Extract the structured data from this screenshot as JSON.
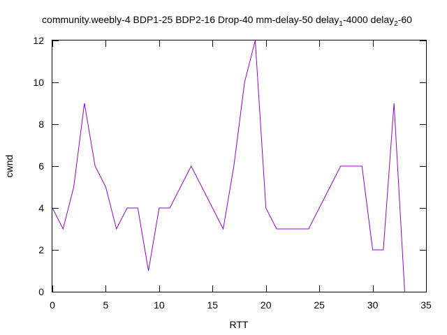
{
  "chart_data": {
    "type": "line",
    "title": {
      "part1": "community.weebly-4 BDP1-25 BDP2-16 Drop-40 mm-delay-50 delay",
      "sub1": "1",
      "part2": "-4000 delay",
      "sub2": "2",
      "part3": "-60"
    },
    "xlabel": "RTT",
    "ylabel": "cwnd",
    "xlim": [
      0,
      35
    ],
    "ylim": [
      0,
      12
    ],
    "xticks": [
      0,
      5,
      10,
      15,
      20,
      25,
      30,
      35
    ],
    "yticks": [
      0,
      2,
      4,
      6,
      8,
      10,
      12
    ],
    "grid": false,
    "legend": "none",
    "series": [
      {
        "color": "#9400d3",
        "x": [
          0,
          1,
          2,
          3,
          4,
          5,
          6,
          7,
          8,
          9,
          10,
          11,
          12,
          13,
          14,
          15,
          16,
          17,
          18,
          19,
          20,
          21,
          22,
          23,
          24,
          25,
          26,
          27,
          28,
          29,
          30,
          31,
          32,
          33
        ],
        "y": [
          4,
          3,
          5,
          9,
          6,
          5,
          3,
          4,
          4,
          1,
          4,
          4,
          5,
          6,
          5,
          4,
          3,
          6,
          10,
          12,
          4,
          3,
          3,
          3,
          3,
          4,
          5,
          6,
          6,
          6,
          2,
          2,
          9,
          0
        ]
      }
    ]
  }
}
